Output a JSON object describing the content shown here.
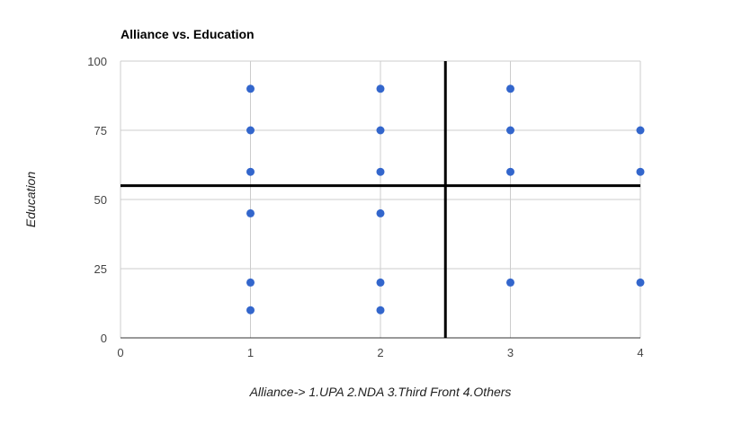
{
  "chart_data": {
    "type": "scatter",
    "title": "Alliance vs. Education",
    "xlabel": "Alliance-> 1.UPA 2.NDA 3.Third Front 4.Others",
    "ylabel": "Education",
    "xlim": [
      0,
      4
    ],
    "ylim": [
      0,
      100
    ],
    "x_ticks": [
      0,
      1,
      2,
      3,
      4
    ],
    "y_ticks": [
      0,
      25,
      50,
      75,
      100
    ],
    "grid": true,
    "point_color": "#3366cc",
    "reference_lines": {
      "vertical_x": 2.5,
      "horizontal_y": 55,
      "color": "#000000"
    },
    "points": [
      {
        "x": 1,
        "y": 90
      },
      {
        "x": 1,
        "y": 75
      },
      {
        "x": 1,
        "y": 60
      },
      {
        "x": 1,
        "y": 45
      },
      {
        "x": 1,
        "y": 20
      },
      {
        "x": 1,
        "y": 10
      },
      {
        "x": 2,
        "y": 90
      },
      {
        "x": 2,
        "y": 75
      },
      {
        "x": 2,
        "y": 60
      },
      {
        "x": 2,
        "y": 45
      },
      {
        "x": 2,
        "y": 20
      },
      {
        "x": 2,
        "y": 10
      },
      {
        "x": 3,
        "y": 90
      },
      {
        "x": 3,
        "y": 75
      },
      {
        "x": 3,
        "y": 60
      },
      {
        "x": 3,
        "y": 20
      },
      {
        "x": 4,
        "y": 75
      },
      {
        "x": 4,
        "y": 60
      },
      {
        "x": 4,
        "y": 20
      }
    ]
  }
}
